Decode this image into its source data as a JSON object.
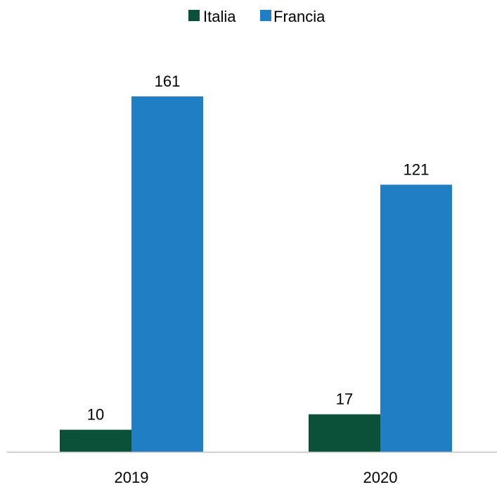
{
  "chart_data": {
    "type": "bar",
    "categories": [
      "2019",
      "2020"
    ],
    "series": [
      {
        "name": "Italia",
        "values": [
          10,
          17
        ],
        "color": "#0b513a"
      },
      {
        "name": "Francia",
        "values": [
          161,
          121
        ],
        "color": "#1f7ec4"
      }
    ],
    "title": "",
    "xlabel": "",
    "ylabel": "",
    "ylim": [
      0,
      161
    ],
    "grid": false,
    "legend_position": "top-center",
    "axis_color": "#bfbfbf"
  }
}
